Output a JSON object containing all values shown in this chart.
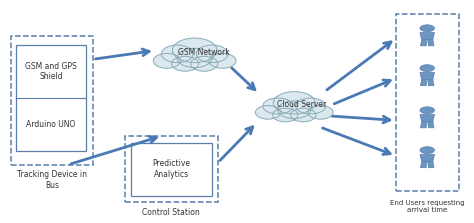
{
  "fig_width": 4.74,
  "fig_height": 2.23,
  "dpi": 100,
  "bg_color": "#ffffff",
  "box_color": "#5a7fa8",
  "arrow_color": "#4a7ab5",
  "person_color": "#5a7fa8",
  "person_fill": "#6b96c4",
  "text_color": "#333333",
  "tracking_device_label": "Tracking Device in\nBus",
  "gsm_shield_label": "GSM and GPS\nShield",
  "arduino_label": "Arduino UNO",
  "gsm_network_label": "GSM Network",
  "cloud_server_label": "Cloud Server",
  "predictive_label": "Predictive\nAnalytics",
  "control_station_label": "Control Station",
  "end_users_label": "End Users requesting\narrival time"
}
